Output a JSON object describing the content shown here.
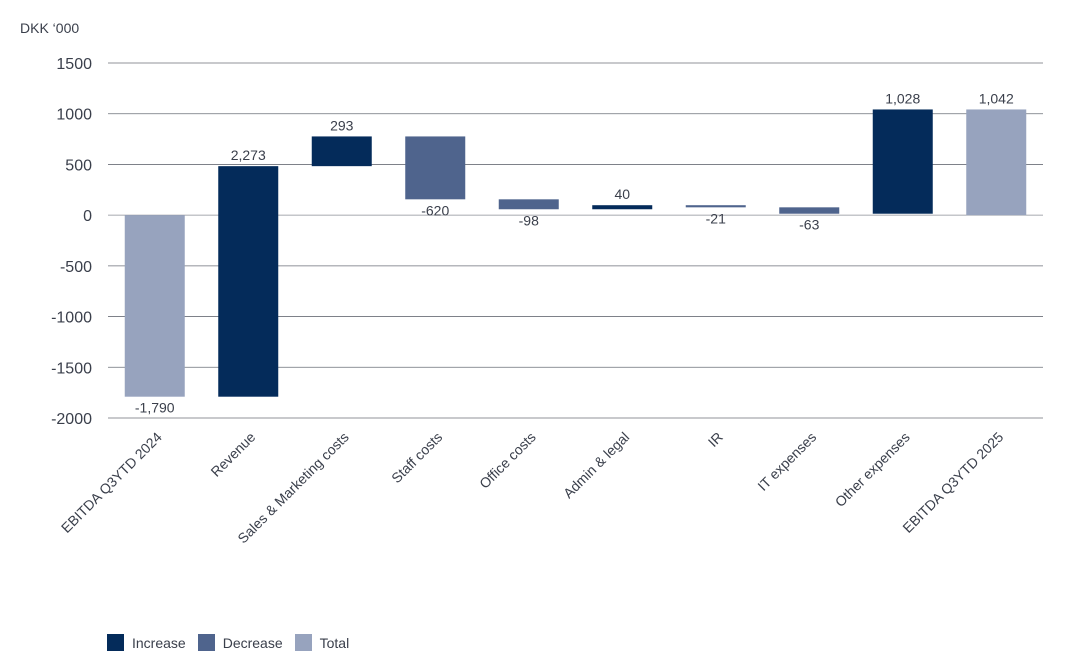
{
  "chart_data": {
    "type": "waterfall",
    "unit_label": "DKK ‘000",
    "y_ticks": [
      "1500",
      "1000",
      "500",
      "0",
      "-500",
      "-1000",
      "-1500",
      "-2000"
    ],
    "ylim": [
      -2000,
      1500
    ],
    "categories": [
      "EBITDA Q3YTD 2024",
      "Revenue",
      "Sales & Marketing costs",
      "Staff costs",
      "Office costs",
      "Admin & legal",
      "IR",
      "IT expenses",
      "Other expenses",
      "EBITDA Q3YTD 2025"
    ],
    "values": [
      -1790,
      2273,
      293,
      -620,
      -98,
      40,
      -21,
      -63,
      1028,
      1042
    ],
    "kinds": [
      "total",
      "increase",
      "increase",
      "decrease",
      "decrease",
      "increase",
      "decrease",
      "decrease",
      "increase",
      "total"
    ],
    "data_labels": [
      "-1,790",
      "2,273",
      "293",
      "-620",
      "-98",
      "40",
      "-21",
      "-63",
      "1,028",
      "1,042"
    ],
    "colors": {
      "increase": "#042b5a",
      "decrease": "#4f648d",
      "total": "#97a3be",
      "grid": "#6b6f78",
      "zero_line": "#8a8d94"
    },
    "legend": [
      {
        "key": "increase",
        "label": "Increase"
      },
      {
        "key": "decrease",
        "label": "Decrease"
      },
      {
        "key": "total",
        "label": "Total"
      }
    ]
  }
}
